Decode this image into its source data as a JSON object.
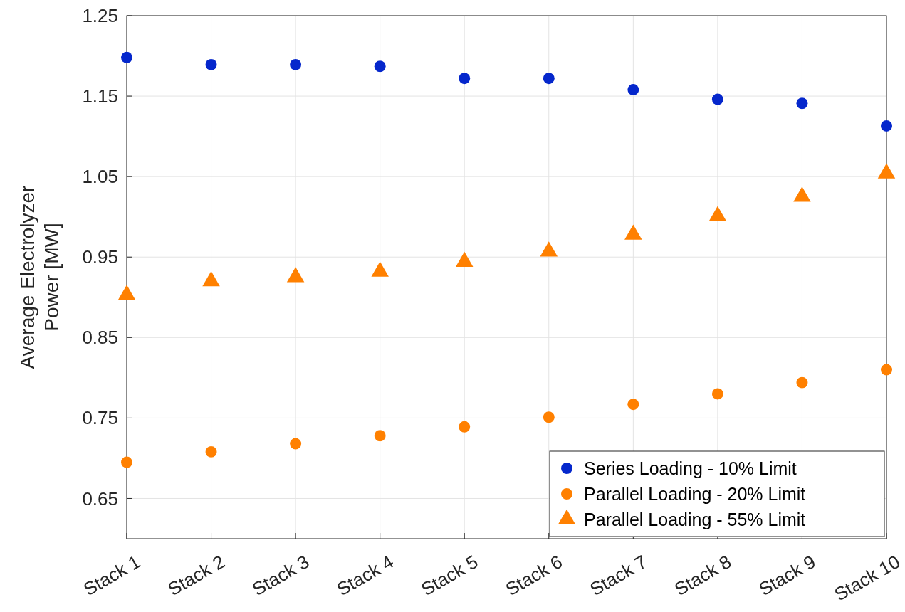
{
  "chart_data": {
    "type": "scatter",
    "ylabel": "Average Electrolyzer Power [MW]",
    "categories": [
      "Stack 1",
      "Stack 2",
      "Stack 3",
      "Stack 4",
      "Stack 5",
      "Stack 6",
      "Stack 7",
      "Stack 8",
      "Stack 9",
      "Stack 10"
    ],
    "series": [
      {
        "name": "Series Loading - 10% Limit",
        "color": "#0527cc",
        "marker": "circle",
        "values": [
          1.198,
          1.189,
          1.189,
          1.187,
          1.172,
          1.172,
          1.158,
          1.146,
          1.141,
          1.113
        ]
      },
      {
        "name": "Parallel Loading - 20% Limit",
        "color": "#ff8000",
        "marker": "circle",
        "values": [
          0.695,
          0.708,
          0.718,
          0.728,
          0.739,
          0.751,
          0.767,
          0.78,
          0.794,
          0.81
        ]
      },
      {
        "name": "Parallel Loading - 55% Limit",
        "color": "#ff8000",
        "marker": "triangle",
        "values": [
          0.903,
          0.92,
          0.925,
          0.932,
          0.944,
          0.957,
          0.978,
          1.001,
          1.025,
          1.054
        ]
      }
    ],
    "ylim": [
      0.6,
      1.25
    ],
    "yticks": [
      0.65,
      0.75,
      0.85,
      0.95,
      1.05,
      1.15,
      1.25
    ],
    "grid": true,
    "legend": "bottom right"
  }
}
